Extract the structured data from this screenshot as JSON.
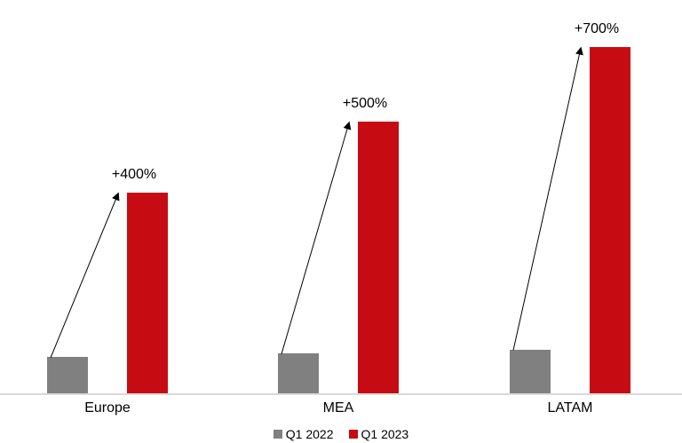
{
  "chart_data": {
    "type": "bar",
    "categories": [
      "Europe",
      "MEA",
      "LATAM"
    ],
    "series": [
      {
        "name": "Q1 2022",
        "color": "#808080",
        "values": [
          1.0,
          1.1,
          1.2
        ]
      },
      {
        "name": "Q1 2023",
        "color": "#c60c12",
        "values": [
          5.4,
          7.3,
          9.3
        ]
      }
    ],
    "annotations": [
      {
        "category": "Europe",
        "label": "+400%"
      },
      {
        "category": "MEA",
        "label": "+500%"
      },
      {
        "category": "LATAM",
        "label": "+700%"
      }
    ],
    "value_axis": {
      "visible": false,
      "min": 0,
      "max": 10
    },
    "gridlines": false,
    "legend": {
      "position": "bottom",
      "entries": [
        "Q1 2022",
        "Q1 2023"
      ]
    },
    "baseline_color": "#d9d9d9",
    "arrow_color": "#000000",
    "note": "No value axis shown; values are relative units estimated from bar heights (Q1 2022 Europe = 1.0). Arrows run from each Q1 2022 bar top to each Q1 2023 bar top."
  }
}
